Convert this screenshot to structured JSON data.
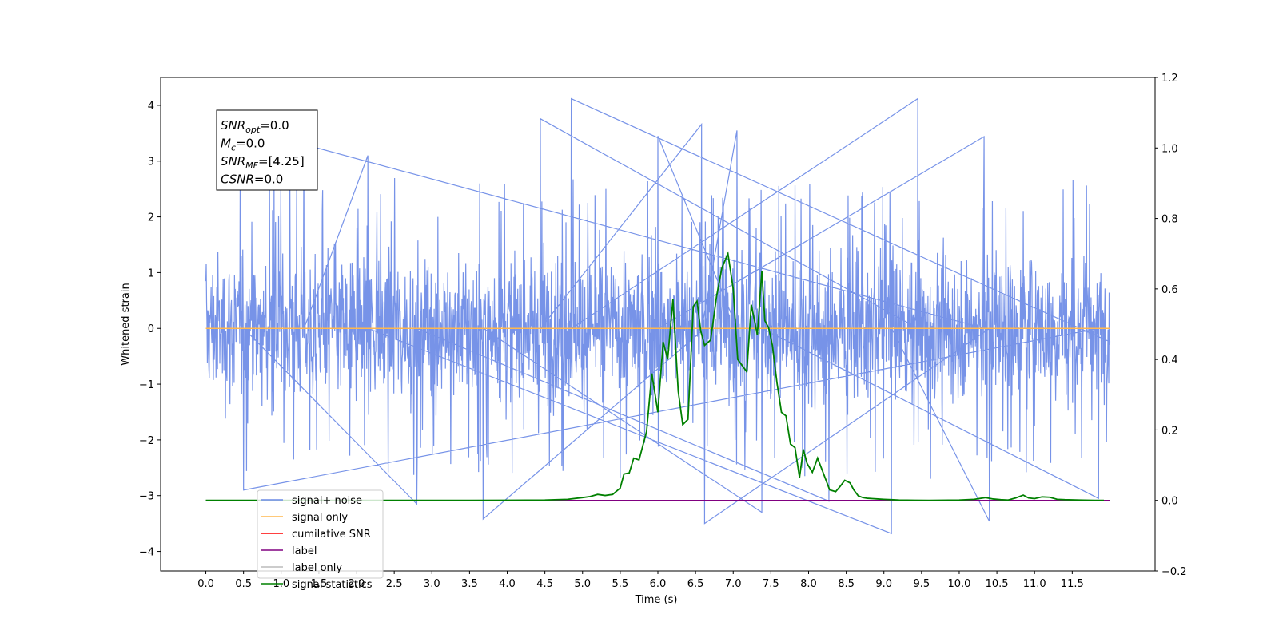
{
  "chart_data": {
    "type": "line",
    "xlabel": "Time (s)",
    "ylabel": "Whitened strain",
    "xlim": [
      -0.6,
      12.6
    ],
    "ylim": [
      -4.35,
      4.5
    ],
    "y2lim": [
      -0.2,
      1.2
    ],
    "x_ticks": [
      "0.0",
      "0.5",
      "1.0",
      "1.5",
      "2.0",
      "2.5",
      "3.0",
      "3.5",
      "4.0",
      "4.5",
      "5.0",
      "5.5",
      "6.0",
      "6.5",
      "7.0",
      "7.5",
      "8.0",
      "8.5",
      "9.0",
      "9.5",
      "10.0",
      "10.5",
      "11.0",
      "11.5"
    ],
    "y_ticks": [
      "4",
      "3",
      "2",
      "1",
      "0",
      "−1",
      "−2",
      "−3",
      "−4"
    ],
    "y2_ticks": [
      "1.2",
      "1.0",
      "0.8",
      "0.6",
      "0.4",
      "0.2",
      "0.0",
      "−0.2"
    ],
    "annotation": {
      "lines": [
        {
          "sym": "SNR",
          "sub": "opt",
          "val": "=0.0"
        },
        {
          "sym": "M",
          "sub": "c",
          "val": "=0.0"
        },
        {
          "sym": "SNR",
          "sub": "MF",
          "val": "=[4.25]"
        },
        {
          "sym": "CSNR",
          "sub": "",
          "val": "=0.0"
        }
      ]
    },
    "legend": {
      "placement": "lower-left",
      "entries": [
        {
          "label": "signal+ noise",
          "color": "#6b8ae6"
        },
        {
          "label": "signal only",
          "color": "#ffb74d"
        },
        {
          "label": "cumilative SNR",
          "color": "#ff0000"
        },
        {
          "label": "label",
          "color": "#800080"
        },
        {
          "label": "label only",
          "color": "#bbbbbb"
        },
        {
          "label": "signal statistics",
          "color": "#008000"
        }
      ]
    },
    "series": [
      {
        "name": "signal+ noise",
        "axis": "left",
        "color": "#6b8ae6",
        "x_range": [
          0.0,
          12.0
        ],
        "approx_band": [
          -2.2,
          2.3
        ],
        "peak_spikes": [
          {
            "x": 4.85,
            "y": 4.12
          },
          {
            "x": 9.45,
            "y": 4.12
          },
          {
            "x": 4.44,
            "y": 3.76
          },
          {
            "x": 6.58,
            "y": 3.66
          },
          {
            "x": 7.05,
            "y": 3.55
          },
          {
            "x": 6.0,
            "y": 3.45
          },
          {
            "x": 10.33,
            "y": 3.44
          },
          {
            "x": 1.3,
            "y": 3.3
          },
          {
            "x": 2.15,
            "y": 3.1
          },
          {
            "x": 9.1,
            "y": -3.68
          },
          {
            "x": 10.4,
            "y": -3.46
          },
          {
            "x": 6.62,
            "y": -3.5
          },
          {
            "x": 3.68,
            "y": -3.42
          },
          {
            "x": 7.38,
            "y": -3.3
          },
          {
            "x": 11.85,
            "y": -3.05
          },
          {
            "x": 0.5,
            "y": -2.9
          },
          {
            "x": 2.8,
            "y": -3.15
          },
          {
            "x": 8.27,
            "y": -3.1
          }
        ]
      },
      {
        "name": "signal only",
        "axis": "left",
        "color": "#ffb74d",
        "x": [
          0.0,
          12.0
        ],
        "y": [
          0.0,
          0.0
        ]
      },
      {
        "name": "label",
        "axis": "right",
        "color": "#800080",
        "x": [
          0.0,
          12.0
        ],
        "y": [
          0.0,
          0.0
        ]
      },
      {
        "name": "signal statistics",
        "axis": "right",
        "color": "#008000",
        "x": [
          0.0,
          3.5,
          4.5,
          4.8,
          5.0,
          5.1,
          5.2,
          5.3,
          5.4,
          5.5,
          5.55,
          5.62,
          5.68,
          5.75,
          5.85,
          5.92,
          6.0,
          6.07,
          6.13,
          6.2,
          6.27,
          6.33,
          6.4,
          6.47,
          6.52,
          6.57,
          6.62,
          6.7,
          6.78,
          6.85,
          6.93,
          7.0,
          7.06,
          7.18,
          7.24,
          7.32,
          7.38,
          7.42,
          7.47,
          7.52,
          7.58,
          7.64,
          7.7,
          7.76,
          7.82,
          7.88,
          7.93,
          7.98,
          8.05,
          8.12,
          8.2,
          8.28,
          8.36,
          8.42,
          8.48,
          8.55,
          8.6,
          8.66,
          8.72,
          8.78,
          8.85,
          8.92,
          9.0,
          9.1,
          9.2,
          9.6,
          10.0,
          10.2,
          10.35,
          10.45,
          10.55,
          10.65,
          10.75,
          10.85,
          10.92,
          11.0,
          11.1,
          11.2,
          11.3,
          11.4,
          11.6,
          11.8,
          11.92
        ],
        "y": [
          0.0,
          0.0,
          0.001,
          0.003,
          0.008,
          0.011,
          0.017,
          0.014,
          0.017,
          0.035,
          0.075,
          0.078,
          0.12,
          0.115,
          0.195,
          0.36,
          0.25,
          0.45,
          0.4,
          0.57,
          0.31,
          0.215,
          0.23,
          0.55,
          0.565,
          0.48,
          0.44,
          0.455,
          0.58,
          0.66,
          0.7,
          0.6,
          0.4,
          0.365,
          0.555,
          0.47,
          0.65,
          0.51,
          0.49,
          0.44,
          0.335,
          0.25,
          0.24,
          0.16,
          0.15,
          0.065,
          0.145,
          0.105,
          0.08,
          0.12,
          0.075,
          0.03,
          0.025,
          0.04,
          0.057,
          0.05,
          0.03,
          0.013,
          0.008,
          0.006,
          0.005,
          0.004,
          0.003,
          0.002,
          0.001,
          0.0,
          0.001,
          0.003,
          0.008,
          0.004,
          0.002,
          0.001,
          0.007,
          0.015,
          0.007,
          0.005,
          0.01,
          0.009,
          0.003,
          0.002,
          0.001,
          0.0,
          0.0
        ]
      }
    ]
  }
}
